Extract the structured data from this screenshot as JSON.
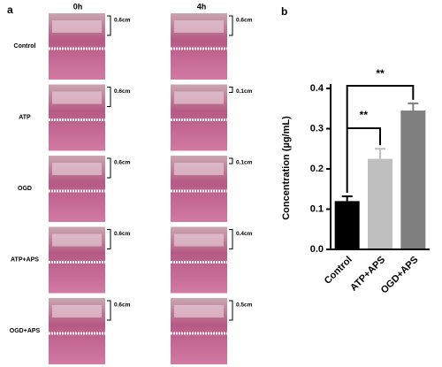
{
  "panel_a": {
    "label": "a",
    "columns": [
      "0h",
      "4h"
    ],
    "rows": [
      {
        "label": "Control",
        "left": "0.6cm",
        "right": "0.6cm"
      },
      {
        "label": "ATP",
        "left": "0.6cm",
        "right": "0.1cm"
      },
      {
        "label": "OGD",
        "left": "0.6cm",
        "right": "0.1cm"
      },
      {
        "label": "ATP+APS",
        "left": "0.6cm",
        "right": "0.4cm"
      },
      {
        "label": "OGD+APS",
        "left": "0.6cm",
        "right": "0.5cm"
      }
    ]
  },
  "chart_data": {
    "type": "bar",
    "panel_label": "b",
    "y_label": "Concentration (µg/mL)",
    "categories": [
      "Control",
      "ATP+APS",
      "OGD+APS"
    ],
    "values": [
      0.12,
      0.225,
      0.345
    ],
    "errors": [
      0.012,
      0.025,
      0.018
    ],
    "colors": [
      "#000000",
      "#bfbfbf",
      "#7f7f7f"
    ],
    "ylim": [
      0,
      0.4
    ],
    "yticks": [
      {
        "value": 0,
        "label": "0.0"
      },
      0.1,
      0.2,
      0.3,
      0.4
    ],
    "annotations": [
      "**",
      "**"
    ]
  }
}
